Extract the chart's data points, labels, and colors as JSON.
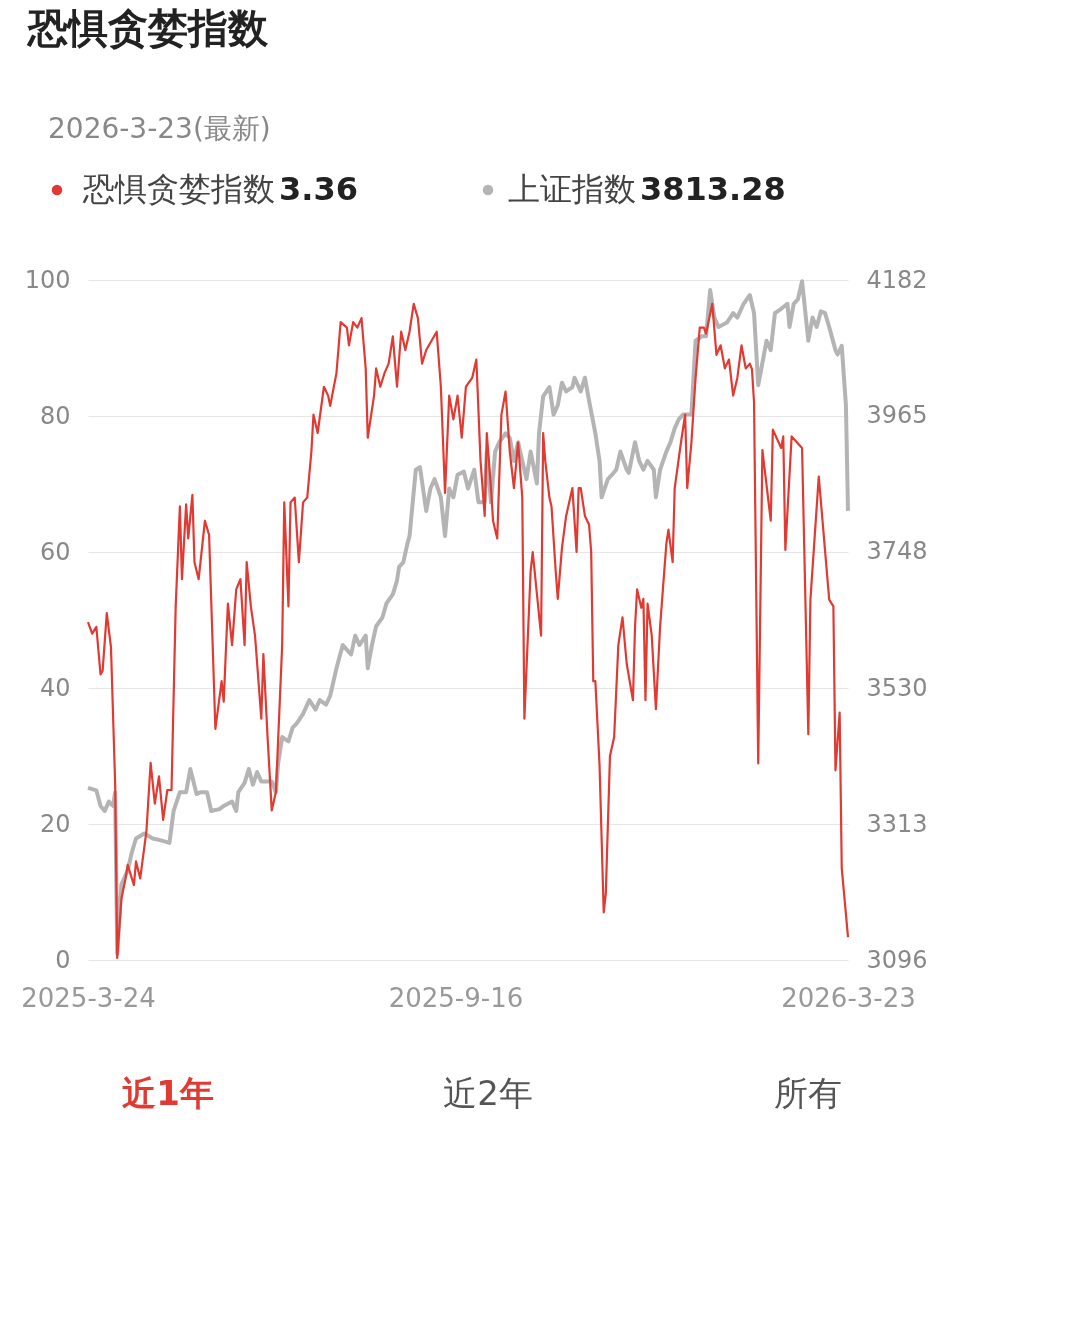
{
  "chart_data": {
    "type": "line",
    "title": "恐惧贪婪指数",
    "subtitle": "2026-3-23(最新)",
    "xlim": [
      "2025-03-24",
      "2026-03-23"
    ],
    "xticks": [
      {
        "value": "2025-03-24",
        "label": "2025-3-24"
      },
      {
        "value": "2025-09-16",
        "label": "2025-9-16"
      },
      {
        "value": "2026-03-23",
        "label": "2026-3-23"
      }
    ],
    "ylim": [
      0,
      100
    ],
    "yticks": [
      0,
      20,
      40,
      60,
      80,
      100
    ],
    "y2lim": [
      3096,
      4182
    ],
    "y2ticks": [
      3096,
      3313,
      3530,
      3748,
      3965,
      4182
    ],
    "grid": "y",
    "legend": "top",
    "line_style": "solid",
    "marker": "none",
    "annotations": [
      "3.36",
      "3813.28",
      "近1年",
      "近2年",
      "所有"
    ],
    "series": [
      {
        "name": "恐惧贪婪指数",
        "color": "#e03a32",
        "x": [
          "2025-03-24",
          "2025-03-26",
          "2025-03-28",
          "2025-03-30",
          "2025-03-31",
          "2025-04-02",
          "2025-04-04",
          "2025-04-06",
          "2025-04-07",
          "2025-04-09",
          "2025-04-11",
          "2025-04-12",
          "2025-04-15",
          "2025-04-16",
          "2025-04-18",
          "2025-04-21",
          "2025-04-23",
          "2025-04-25",
          "2025-04-27",
          "2025-04-29",
          "2025-05-01",
          "2025-05-03",
          "2025-05-05",
          "2025-05-07",
          "2025-05-08",
          "2025-05-10",
          "2025-05-11",
          "2025-05-13",
          "2025-05-14",
          "2025-05-16",
          "2025-05-19",
          "2025-05-21",
          "2025-05-24",
          "2025-05-27",
          "2025-05-28",
          "2025-05-30",
          "2025-06-01",
          "2025-06-03",
          "2025-06-05",
          "2025-06-07",
          "2025-06-08",
          "2025-06-10",
          "2025-06-12",
          "2025-06-15",
          "2025-06-16",
          "2025-06-18",
          "2025-06-20",
          "2025-06-22",
          "2025-06-25",
          "2025-06-26",
          "2025-06-28",
          "2025-06-29",
          "2025-07-01",
          "2025-07-03",
          "2025-07-05",
          "2025-07-07",
          "2025-07-09",
          "2025-07-10",
          "2025-07-12",
          "2025-07-15",
          "2025-07-17",
          "2025-07-18",
          "2025-07-21",
          "2025-07-23",
          "2025-07-26",
          "2025-07-27",
          "2025-07-29",
          "2025-07-31",
          "2025-08-02",
          "2025-08-04",
          "2025-08-05",
          "2025-08-08",
          "2025-08-09",
          "2025-08-11",
          "2025-08-13",
          "2025-08-15",
          "2025-08-17",
          "2025-08-19",
          "2025-08-21",
          "2025-08-23",
          "2025-08-25",
          "2025-08-27",
          "2025-08-29",
          "2025-08-31",
          "2025-09-02",
          "2025-09-07",
          "2025-09-09",
          "2025-09-11",
          "2025-09-13",
          "2025-09-15",
          "2025-09-17",
          "2025-09-19",
          "2025-09-21",
          "2025-09-24",
          "2025-09-26",
          "2025-09-28",
          "2025-09-30",
          "2025-10-01",
          "2025-10-03",
          "2025-10-04",
          "2025-10-06",
          "2025-10-08",
          "2025-10-10",
          "2025-10-12",
          "2025-10-14",
          "2025-10-16",
          "2025-10-18",
          "2025-10-19",
          "2025-10-22",
          "2025-10-23",
          "2025-10-27",
          "2025-10-28",
          "2025-10-29",
          "2025-10-31",
          "2025-11-01",
          "2025-11-03",
          "2025-11-04",
          "2025-11-06",
          "2025-11-08",
          "2025-11-11",
          "2025-11-13",
          "2025-11-14",
          "2025-11-15",
          "2025-11-17",
          "2025-11-19",
          "2025-11-20",
          "2025-11-21",
          "2025-11-22",
          "2025-11-24",
          "2025-11-26",
          "2025-11-27",
          "2025-11-29",
          "2025-12-01",
          "2025-12-03",
          "2025-12-05",
          "2025-12-07",
          "2025-12-10",
          "2025-12-11",
          "2025-12-12",
          "2025-12-14",
          "2025-12-15",
          "2025-12-16",
          "2025-12-17",
          "2025-12-19",
          "2025-12-21",
          "2025-12-23",
          "2025-12-24",
          "2025-12-26",
          "2025-12-27",
          "2025-12-29",
          "2025-12-30",
          "2026-01-02",
          "2026-01-04",
          "2026-01-05",
          "2026-01-07",
          "2026-01-09",
          "2026-01-11",
          "2026-01-13",
          "2026-01-14",
          "2026-01-17",
          "2026-01-19",
          "2026-01-21",
          "2026-01-23",
          "2026-01-25",
          "2026-01-27",
          "2026-01-29",
          "2026-01-31",
          "2026-02-02",
          "2026-02-04",
          "2026-02-05",
          "2026-02-06",
          "2026-02-08",
          "2026-02-10",
          "2026-02-14",
          "2026-02-15",
          "2026-02-19",
          "2026-02-20",
          "2026-02-21",
          "2026-02-24",
          "2026-03-01",
          "2026-03-04",
          "2026-03-05",
          "2026-03-09",
          "2026-03-14",
          "2026-03-16",
          "2026-03-17",
          "2026-03-19",
          "2026-03-20",
          "2026-03-23"
        ],
        "values": [
          49.7,
          48,
          49,
          42,
          42.5,
          51,
          46,
          26,
          0.3,
          9,
          12,
          14,
          11,
          14.5,
          12,
          19,
          29,
          23,
          27,
          20.6,
          25,
          25,
          52,
          66.7,
          56,
          67,
          62,
          68.4,
          58.5,
          56,
          64.6,
          62.5,
          34,
          41,
          38,
          52.4,
          46.3,
          54.5,
          56,
          46.3,
          58.5,
          52,
          47.7,
          35.5,
          45,
          32.8,
          22,
          24.7,
          46.3,
          67.3,
          52,
          67.3,
          68,
          58.5,
          67.3,
          68,
          74.8,
          80.2,
          77.5,
          84.3,
          83,
          81.5,
          86.3,
          93.8,
          93,
          90.4,
          93.8,
          93,
          94.4,
          87,
          76.8,
          83,
          87,
          84.3,
          86.3,
          87.7,
          91.7,
          84.3,
          92.4,
          89.7,
          92.4,
          96.5,
          94.4,
          87.7,
          89.7,
          92.4,
          84.3,
          68.7,
          83,
          79.5,
          83,
          76.8,
          84.3,
          85.6,
          88.3,
          73.4,
          65.3,
          77.5,
          69.4,
          64.6,
          62,
          80.2,
          83.6,
          74.8,
          69.4,
          76.1,
          68,
          35.5,
          57.2,
          60,
          47.7,
          77.5,
          73.4,
          68,
          66.7,
          57.2,
          53.1,
          60.6,
          65.3,
          69.4,
          60,
          69.4,
          69.4,
          65.3,
          64,
          60,
          41,
          41,
          28.7,
          7,
          9.8,
          30,
          32.8,
          46.3,
          50.4,
          43.6,
          38.2,
          49,
          54.5,
          51.8,
          53.1,
          38.2,
          52.4,
          47.7,
          36.9,
          49,
          53.1,
          61.2,
          63.3,
          58.5,
          69.4,
          76.1,
          80.2,
          69.4,
          76.1,
          85.6,
          93,
          93,
          92.1,
          96.5,
          89,
          90.4,
          87,
          88.3,
          83,
          85.6,
          90.4,
          87,
          87.7,
          86.9,
          82,
          28.9,
          75,
          64.6,
          78,
          75.3,
          77,
          60.3,
          77,
          75.3,
          33.2,
          53,
          71.1,
          53,
          52,
          27.9,
          36.4,
          13.5,
          3.36
        ]
      },
      {
        "name": "上证指数",
        "color": "#b4b4b4",
        "axis": "y2",
        "x": [
          "2025-03-24",
          "2025-03-28",
          "2025-03-30",
          "2025-04-01",
          "2025-04-03",
          "2025-04-05",
          "2025-04-06",
          "2025-04-07",
          "2025-04-09",
          "2025-04-12",
          "2025-04-14",
          "2025-04-16",
          "2025-04-20",
          "2025-04-24",
          "2025-04-28",
          "2025-05-02",
          "2025-05-04",
          "2025-05-07",
          "2025-05-10",
          "2025-05-12",
          "2025-05-15",
          "2025-05-17",
          "2025-05-20",
          "2025-05-22",
          "2025-05-26",
          "2025-05-28",
          "2025-06-01",
          "2025-06-03",
          "2025-06-04",
          "2025-06-07",
          "2025-06-09",
          "2025-06-11",
          "2025-06-13",
          "2025-06-15",
          "2025-06-17",
          "2025-06-20",
          "2025-06-22",
          "2025-06-23",
          "2025-06-25",
          "2025-06-28",
          "2025-06-30",
          "2025-07-02",
          "2025-07-05",
          "2025-07-08",
          "2025-07-11",
          "2025-07-13",
          "2025-07-16",
          "2025-07-18",
          "2025-07-21",
          "2025-07-24",
          "2025-07-28",
          "2025-07-30",
          "2025-08-01",
          "2025-08-04",
          "2025-08-05",
          "2025-08-07",
          "2025-08-09",
          "2025-08-12",
          "2025-08-14",
          "2025-08-17",
          "2025-08-19",
          "2025-08-20",
          "2025-08-22",
          "2025-08-24",
          "2025-08-25",
          "2025-08-28",
          "2025-08-30",
          "2025-09-02",
          "2025-09-04",
          "2025-09-06",
          "2025-09-09",
          "2025-09-11",
          "2025-09-13",
          "2025-09-15",
          "2025-09-17",
          "2025-09-20",
          "2025-09-22",
          "2025-09-25",
          "2025-09-27",
          "2025-09-30",
          "2025-10-01",
          "2025-10-03",
          "2025-10-05",
          "2025-10-07",
          "2025-10-10",
          "2025-10-12",
          "2025-10-14",
          "2025-10-16",
          "2025-10-18",
          "2025-10-20",
          "2025-10-22",
          "2025-10-25",
          "2025-10-26",
          "2025-10-28",
          "2025-10-31",
          "2025-11-02",
          "2025-11-04",
          "2025-11-06",
          "2025-11-08",
          "2025-11-11",
          "2025-11-12",
          "2025-11-15",
          "2025-11-17",
          "2025-11-19",
          "2025-11-22",
          "2025-11-24",
          "2025-11-25",
          "2025-11-28",
          "2025-11-30",
          "2025-12-02",
          "2025-12-04",
          "2025-12-07",
          "2025-12-08",
          "2025-12-11",
          "2025-12-13",
          "2025-12-15",
          "2025-12-17",
          "2025-12-20",
          "2025-12-21",
          "2025-12-23",
          "2025-12-26",
          "2025-12-28",
          "2025-12-30",
          "2026-01-01",
          "2026-01-03",
          "2026-01-07",
          "2026-01-09",
          "2026-01-12",
          "2026-01-14",
          "2026-01-16",
          "2026-01-18",
          "2026-01-20",
          "2026-01-24",
          "2026-01-27",
          "2026-01-29",
          "2026-02-01",
          "2026-02-04",
          "2026-02-06",
          "2026-02-08",
          "2026-02-12",
          "2026-02-14",
          "2026-02-16",
          "2026-02-19",
          "2026-02-22",
          "2026-02-23",
          "2026-02-25",
          "2026-02-27",
          "2026-03-01",
          "2026-03-04",
          "2026-03-06",
          "2026-03-08",
          "2026-03-10",
          "2026-03-12",
          "2026-03-14",
          "2026-03-17",
          "2026-03-18",
          "2026-03-20",
          "2026-03-22",
          "2026-03-23"
        ],
        "values": [
          3371,
          3367,
          3342,
          3334,
          3349,
          3342,
          3364,
          3106,
          3217,
          3239,
          3268,
          3290,
          3298,
          3290,
          3287,
          3283,
          3334,
          3364,
          3364,
          3401,
          3361,
          3364,
          3364,
          3334,
          3337,
          3342,
          3349,
          3334,
          3364,
          3379,
          3401,
          3376,
          3396,
          3381,
          3381,
          3381,
          3364,
          3408,
          3452,
          3445,
          3467,
          3474,
          3489,
          3511,
          3496,
          3511,
          3504,
          3518,
          3562,
          3599,
          3584,
          3614,
          3599,
          3614,
          3562,
          3599,
          3629,
          3643,
          3666,
          3680,
          3702,
          3724,
          3731,
          3761,
          3773,
          3879,
          3883,
          3813,
          3849,
          3864,
          3835,
          3773,
          3849,
          3835,
          3871,
          3876,
          3849,
          3879,
          3827,
          3827,
          3908,
          3827,
          3908,
          3923,
          3937,
          3930,
          3893,
          3923,
          3893,
          3864,
          3908,
          3857,
          3937,
          3996,
          4011,
          3967,
          3982,
          4018,
          4004,
          4011,
          4026,
          4004,
          4026,
          3989,
          3937,
          3893,
          3835,
          3864,
          3871,
          3879,
          3908,
          3879,
          3874,
          3923,
          3893,
          3879,
          3893,
          3879,
          3835,
          3879,
          3908,
          3923,
          3945,
          3960,
          3967,
          3967,
          4085,
          4092,
          4092,
          4166,
          4122,
          4107,
          4114,
          4129,
          4122,
          4144,
          4158,
          4129,
          4014,
          4085,
          4070,
          4129,
          4136,
          4144,
          4107,
          4144,
          4151,
          4180,
          4085,
          4122,
          4107,
          4132,
          4129,
          4107,
          4070,
          4063,
          4077,
          3982,
          3813.28
        ]
      }
    ]
  }
}
